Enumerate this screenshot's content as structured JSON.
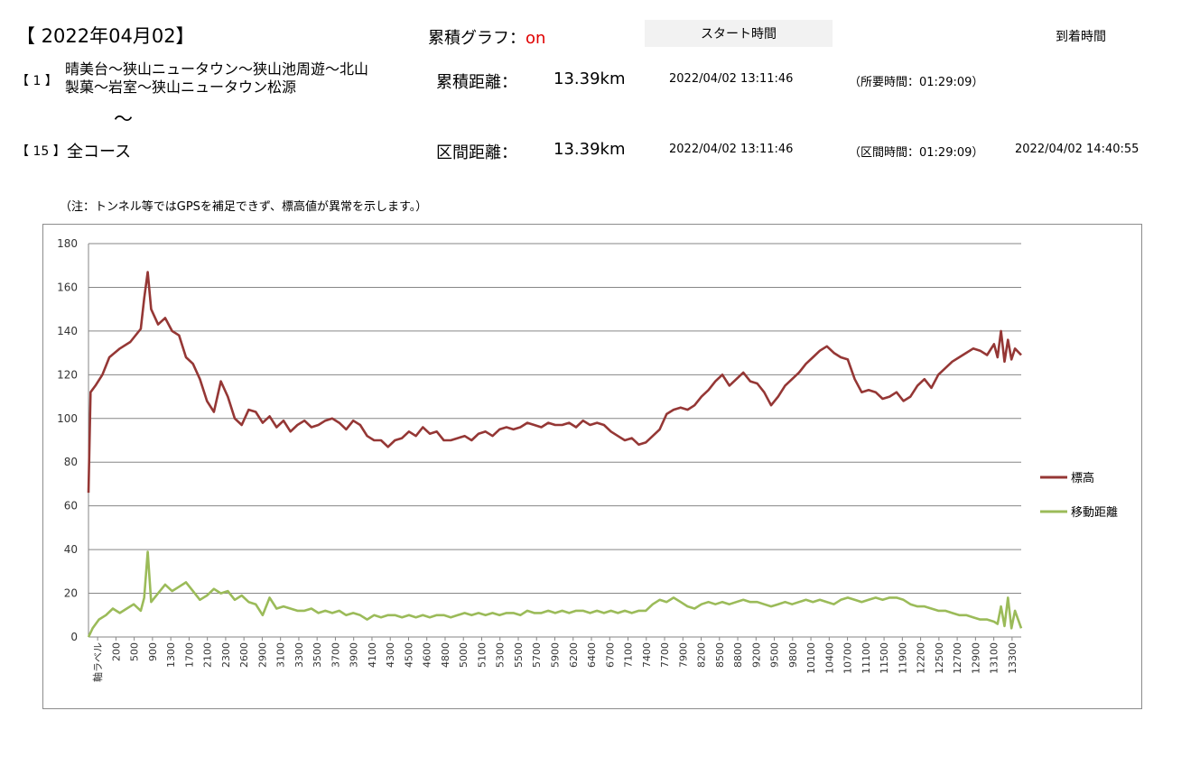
{
  "header": {
    "date": "【 2022年04月02】",
    "cumulative_graph_label": "累積グラフ：",
    "cumulative_graph_value": "on",
    "start_time_button": "スタート時間",
    "arrival_time_label": "到着時間"
  },
  "course_from": {
    "index": "【 1 】",
    "name_line1": "晴美台～狭山ニュータウン～狭山池周遊～北山",
    "name_line2": "製菓～岩室～狭山ニュータウン松源"
  },
  "tilde": "～",
  "course_to": {
    "index": "【 15 】",
    "name": "全コース"
  },
  "cumulative_distance_label": "累積距離：",
  "cumulative_distance_value": "13.39km",
  "cumulative_start_time": "2022/04/02 13:11:46",
  "total_elapsed": "（所要時間：01:29:09）",
  "section_distance_label": "区間距離：",
  "section_distance_value": "13.39km",
  "section_start_time": "2022/04/02 13:11:46",
  "section_elapsed": "（区間時間：01:29:09）",
  "arrival_time": "2022/04/02 14:40:55",
  "note": "（注：トンネル等ではGPSを補足できず、標高値が異常を示します。）",
  "chart_data": {
    "type": "line",
    "title": "",
    "xlabel": "",
    "ylabel": "",
    "ylim": [
      0,
      180
    ],
    "yticks": [
      0,
      20,
      40,
      60,
      80,
      100,
      120,
      140,
      160,
      180
    ],
    "grid": true,
    "legend_position": "right",
    "x_first_label": "軸ラベル",
    "x_tick_labels": [
      "200",
      "500",
      "900",
      "1300",
      "1700",
      "2100",
      "2300",
      "2600",
      "2900",
      "3100",
      "3300",
      "3500",
      "3700",
      "3900",
      "4100",
      "4300",
      "4500",
      "4600",
      "4800",
      "5000",
      "5100",
      "5300",
      "5500",
      "5700",
      "5900",
      "6200",
      "6400",
      "6700",
      "7100",
      "7400",
      "7700",
      "7900",
      "8200",
      "8500",
      "8800",
      "9200",
      "9500",
      "9800",
      "10100",
      "10400",
      "10700",
      "11100",
      "11500",
      "11900",
      "12200",
      "12500",
      "12700",
      "12900",
      "13100",
      "13300"
    ],
    "x_range_m": [
      0,
      13390
    ],
    "series": [
      {
        "name": "標高",
        "color": "#953735",
        "points": [
          [
            0,
            66
          ],
          [
            30,
            112
          ],
          [
            100,
            115
          ],
          [
            200,
            120
          ],
          [
            300,
            128
          ],
          [
            450,
            132
          ],
          [
            600,
            135
          ],
          [
            750,
            141
          ],
          [
            800,
            155
          ],
          [
            850,
            167
          ],
          [
            900,
            150
          ],
          [
            1000,
            143
          ],
          [
            1100,
            146
          ],
          [
            1200,
            140
          ],
          [
            1300,
            138
          ],
          [
            1400,
            128
          ],
          [
            1500,
            125
          ],
          [
            1600,
            118
          ],
          [
            1700,
            108
          ],
          [
            1800,
            103
          ],
          [
            1900,
            117
          ],
          [
            2000,
            110
          ],
          [
            2100,
            100
          ],
          [
            2200,
            97
          ],
          [
            2300,
            104
          ],
          [
            2400,
            103
          ],
          [
            2500,
            98
          ],
          [
            2600,
            101
          ],
          [
            2700,
            96
          ],
          [
            2800,
            99
          ],
          [
            2900,
            94
          ],
          [
            3000,
            97
          ],
          [
            3100,
            99
          ],
          [
            3200,
            96
          ],
          [
            3300,
            97
          ],
          [
            3400,
            99
          ],
          [
            3500,
            100
          ],
          [
            3600,
            98
          ],
          [
            3700,
            95
          ],
          [
            3800,
            99
          ],
          [
            3900,
            97
          ],
          [
            4000,
            92
          ],
          [
            4100,
            90
          ],
          [
            4200,
            90
          ],
          [
            4300,
            87
          ],
          [
            4400,
            90
          ],
          [
            4500,
            91
          ],
          [
            4600,
            94
          ],
          [
            4700,
            92
          ],
          [
            4800,
            96
          ],
          [
            4900,
            93
          ],
          [
            5000,
            94
          ],
          [
            5100,
            90
          ],
          [
            5200,
            90
          ],
          [
            5300,
            91
          ],
          [
            5400,
            92
          ],
          [
            5500,
            90
          ],
          [
            5600,
            93
          ],
          [
            5700,
            94
          ],
          [
            5800,
            92
          ],
          [
            5900,
            95
          ],
          [
            6000,
            96
          ],
          [
            6100,
            95
          ],
          [
            6200,
            96
          ],
          [
            6300,
            98
          ],
          [
            6400,
            97
          ],
          [
            6500,
            96
          ],
          [
            6600,
            98
          ],
          [
            6700,
            97
          ],
          [
            6800,
            97
          ],
          [
            6900,
            98
          ],
          [
            7000,
            96
          ],
          [
            7100,
            99
          ],
          [
            7200,
            97
          ],
          [
            7300,
            98
          ],
          [
            7400,
            97
          ],
          [
            7500,
            94
          ],
          [
            7600,
            92
          ],
          [
            7700,
            90
          ],
          [
            7800,
            91
          ],
          [
            7900,
            88
          ],
          [
            8000,
            89
          ],
          [
            8100,
            92
          ],
          [
            8200,
            95
          ],
          [
            8300,
            102
          ],
          [
            8400,
            104
          ],
          [
            8500,
            105
          ],
          [
            8600,
            104
          ],
          [
            8700,
            106
          ],
          [
            8800,
            110
          ],
          [
            8900,
            113
          ],
          [
            9000,
            117
          ],
          [
            9100,
            120
          ],
          [
            9200,
            115
          ],
          [
            9300,
            118
          ],
          [
            9400,
            121
          ],
          [
            9500,
            117
          ],
          [
            9600,
            116
          ],
          [
            9700,
            112
          ],
          [
            9800,
            106
          ],
          [
            9900,
            110
          ],
          [
            10000,
            115
          ],
          [
            10100,
            118
          ],
          [
            10200,
            121
          ],
          [
            10300,
            125
          ],
          [
            10400,
            128
          ],
          [
            10500,
            131
          ],
          [
            10600,
            133
          ],
          [
            10700,
            130
          ],
          [
            10800,
            128
          ],
          [
            10900,
            127
          ],
          [
            11000,
            118
          ],
          [
            11100,
            112
          ],
          [
            11200,
            113
          ],
          [
            11300,
            112
          ],
          [
            11400,
            109
          ],
          [
            11500,
            110
          ],
          [
            11600,
            112
          ],
          [
            11700,
            108
          ],
          [
            11800,
            110
          ],
          [
            11900,
            115
          ],
          [
            12000,
            118
          ],
          [
            12100,
            114
          ],
          [
            12200,
            120
          ],
          [
            12300,
            123
          ],
          [
            12400,
            126
          ],
          [
            12500,
            128
          ],
          [
            12600,
            130
          ],
          [
            12700,
            132
          ],
          [
            12800,
            131
          ],
          [
            12900,
            129
          ],
          [
            13000,
            134
          ],
          [
            13050,
            128
          ],
          [
            13100,
            140
          ],
          [
            13150,
            126
          ],
          [
            13200,
            136
          ],
          [
            13250,
            127
          ],
          [
            13300,
            132
          ],
          [
            13390,
            129
          ]
        ]
      },
      {
        "name": "移動距離",
        "color": "#9bbb59",
        "points": [
          [
            0,
            0
          ],
          [
            60,
            4
          ],
          [
            150,
            8
          ],
          [
            250,
            10
          ],
          [
            350,
            13
          ],
          [
            450,
            11
          ],
          [
            550,
            13
          ],
          [
            650,
            15
          ],
          [
            750,
            12
          ],
          [
            800,
            18
          ],
          [
            850,
            39
          ],
          [
            900,
            16
          ],
          [
            1000,
            20
          ],
          [
            1100,
            24
          ],
          [
            1200,
            21
          ],
          [
            1300,
            23
          ],
          [
            1400,
            25
          ],
          [
            1500,
            21
          ],
          [
            1600,
            17
          ],
          [
            1700,
            19
          ],
          [
            1800,
            22
          ],
          [
            1900,
            20
          ],
          [
            2000,
            21
          ],
          [
            2100,
            17
          ],
          [
            2200,
            19
          ],
          [
            2300,
            16
          ],
          [
            2400,
            15
          ],
          [
            2500,
            10
          ],
          [
            2600,
            18
          ],
          [
            2700,
            13
          ],
          [
            2800,
            14
          ],
          [
            2900,
            13
          ],
          [
            3000,
            12
          ],
          [
            3100,
            12
          ],
          [
            3200,
            13
          ],
          [
            3300,
            11
          ],
          [
            3400,
            12
          ],
          [
            3500,
            11
          ],
          [
            3600,
            12
          ],
          [
            3700,
            10
          ],
          [
            3800,
            11
          ],
          [
            3900,
            10
          ],
          [
            4000,
            8
          ],
          [
            4100,
            10
          ],
          [
            4200,
            9
          ],
          [
            4300,
            10
          ],
          [
            4400,
            10
          ],
          [
            4500,
            9
          ],
          [
            4600,
            10
          ],
          [
            4700,
            9
          ],
          [
            4800,
            10
          ],
          [
            4900,
            9
          ],
          [
            5000,
            10
          ],
          [
            5100,
            10
          ],
          [
            5200,
            9
          ],
          [
            5300,
            10
          ],
          [
            5400,
            11
          ],
          [
            5500,
            10
          ],
          [
            5600,
            11
          ],
          [
            5700,
            10
          ],
          [
            5800,
            11
          ],
          [
            5900,
            10
          ],
          [
            6000,
            11
          ],
          [
            6100,
            11
          ],
          [
            6200,
            10
          ],
          [
            6300,
            12
          ],
          [
            6400,
            11
          ],
          [
            6500,
            11
          ],
          [
            6600,
            12
          ],
          [
            6700,
            11
          ],
          [
            6800,
            12
          ],
          [
            6900,
            11
          ],
          [
            7000,
            12
          ],
          [
            7100,
            12
          ],
          [
            7200,
            11
          ],
          [
            7300,
            12
          ],
          [
            7400,
            11
          ],
          [
            7500,
            12
          ],
          [
            7600,
            11
          ],
          [
            7700,
            12
          ],
          [
            7800,
            11
          ],
          [
            7900,
            12
          ],
          [
            8000,
            12
          ],
          [
            8100,
            15
          ],
          [
            8200,
            17
          ],
          [
            8300,
            16
          ],
          [
            8400,
            18
          ],
          [
            8500,
            16
          ],
          [
            8600,
            14
          ],
          [
            8700,
            13
          ],
          [
            8800,
            15
          ],
          [
            8900,
            16
          ],
          [
            9000,
            15
          ],
          [
            9100,
            16
          ],
          [
            9200,
            15
          ],
          [
            9300,
            16
          ],
          [
            9400,
            17
          ],
          [
            9500,
            16
          ],
          [
            9600,
            16
          ],
          [
            9700,
            15
          ],
          [
            9800,
            14
          ],
          [
            9900,
            15
          ],
          [
            10000,
            16
          ],
          [
            10100,
            15
          ],
          [
            10200,
            16
          ],
          [
            10300,
            17
          ],
          [
            10400,
            16
          ],
          [
            10500,
            17
          ],
          [
            10600,
            16
          ],
          [
            10700,
            15
          ],
          [
            10800,
            17
          ],
          [
            10900,
            18
          ],
          [
            11000,
            17
          ],
          [
            11100,
            16
          ],
          [
            11200,
            17
          ],
          [
            11300,
            18
          ],
          [
            11400,
            17
          ],
          [
            11500,
            18
          ],
          [
            11600,
            18
          ],
          [
            11700,
            17
          ],
          [
            11800,
            15
          ],
          [
            11900,
            14
          ],
          [
            12000,
            14
          ],
          [
            12100,
            13
          ],
          [
            12200,
            12
          ],
          [
            12300,
            12
          ],
          [
            12400,
            11
          ],
          [
            12500,
            10
          ],
          [
            12600,
            10
          ],
          [
            12700,
            9
          ],
          [
            12800,
            8
          ],
          [
            12900,
            8
          ],
          [
            13000,
            7
          ],
          [
            13050,
            6
          ],
          [
            13100,
            14
          ],
          [
            13150,
            5
          ],
          [
            13200,
            18
          ],
          [
            13250,
            4
          ],
          [
            13300,
            12
          ],
          [
            13390,
            4
          ]
        ]
      }
    ]
  }
}
